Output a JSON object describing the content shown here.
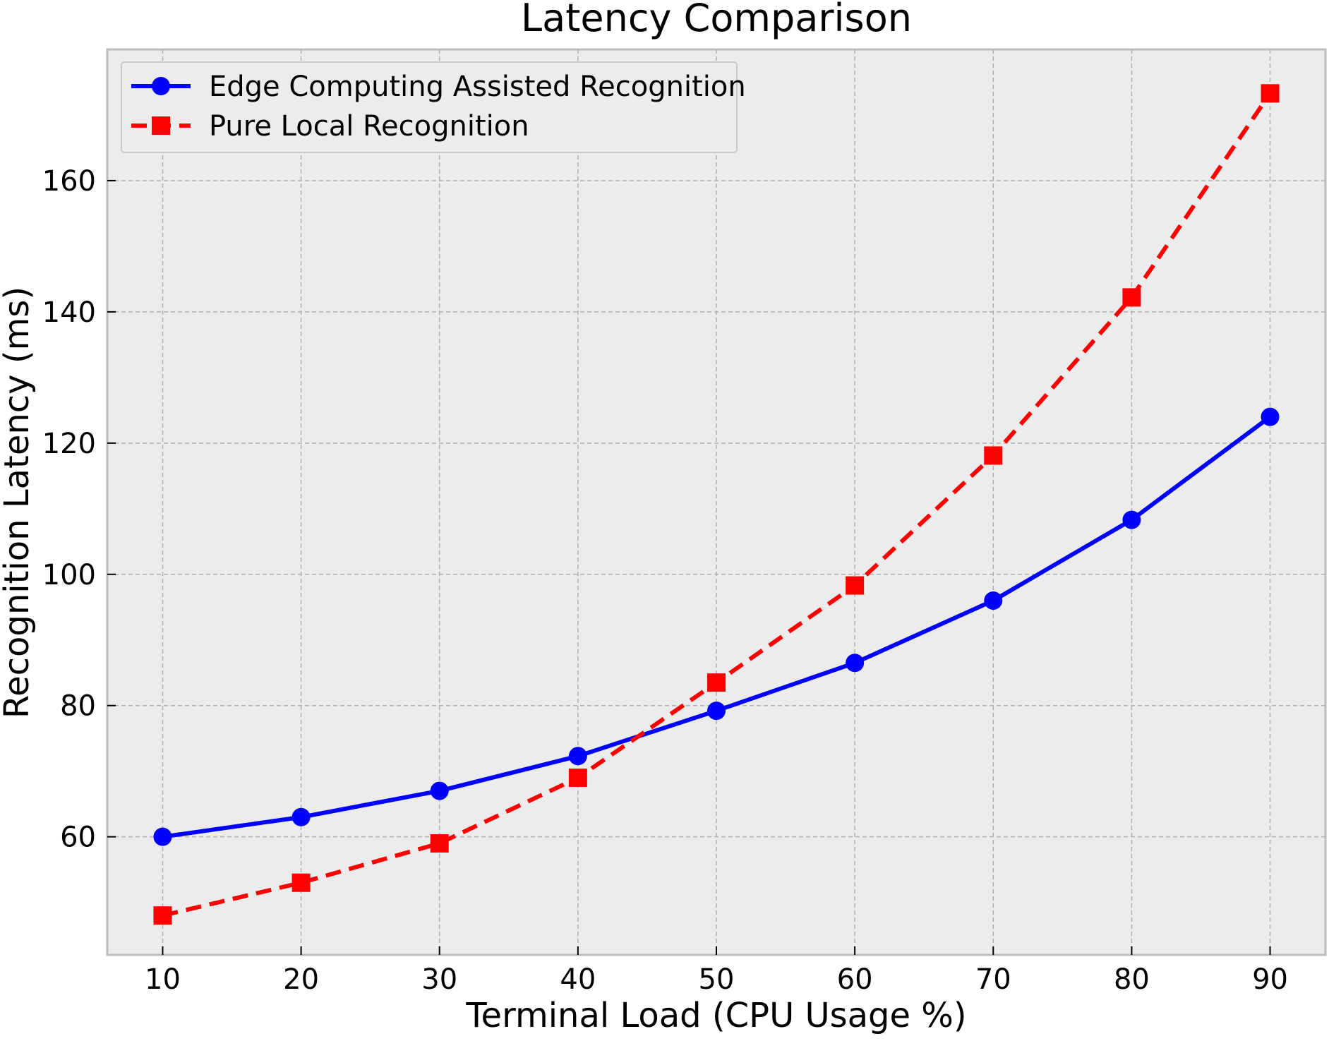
{
  "chart_data": {
    "type": "line",
    "title": "Latency Comparison",
    "xlabel": "Terminal Load (CPU Usage %)",
    "ylabel": "Recognition Latency (ms)",
    "x": [
      10,
      20,
      30,
      40,
      50,
      60,
      70,
      80,
      90
    ],
    "xlim": [
      6,
      94
    ],
    "ylim": [
      42,
      180
    ],
    "xticks": [
      10,
      20,
      30,
      40,
      50,
      60,
      70,
      80,
      90
    ],
    "yticks": [
      60,
      80,
      100,
      120,
      140,
      160
    ],
    "grid": true,
    "legend_position": "top-left",
    "series": [
      {
        "name": "Edge Computing Assisted Recognition",
        "values": [
          60,
          63,
          67,
          72.3,
          79.2,
          86.5,
          96,
          108.3,
          124
        ],
        "color": "#0000ff",
        "marker": "circle",
        "line_style": "solid"
      },
      {
        "name": "Pure Local Recognition",
        "values": [
          48,
          53,
          59,
          69,
          83.5,
          98.3,
          118.1,
          142.2,
          173.3
        ],
        "color": "#ff0000",
        "marker": "square",
        "line_style": "dashed"
      }
    ]
  }
}
